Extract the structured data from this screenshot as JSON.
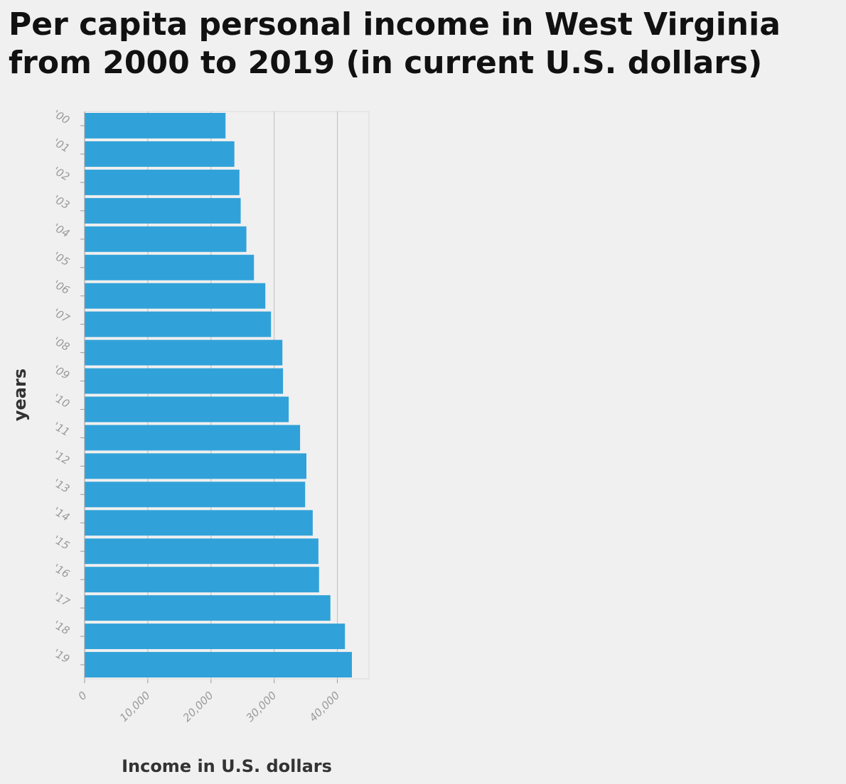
{
  "title_lines": [
    "Per capita personal income in West Virginia",
    "from 2000 to 2019 (in current U.S. dollars)"
  ],
  "chart_data": {
    "type": "bar",
    "orientation": "horizontal",
    "title": "Per capita personal income in West Virginia from 2000 to 2019 (in current U.S. dollars)",
    "xlabel": "Income in U.S. dollars",
    "ylabel": "years",
    "categories": [
      "'00",
      "'01",
      "'02",
      "'03",
      "'04",
      "'05",
      "'06",
      "'07",
      "'08",
      "'09",
      "'10",
      "'11",
      "'12",
      "'13",
      "'14",
      "'15",
      "'16",
      "'17",
      "'18",
      "'19"
    ],
    "values": [
      22300,
      23700,
      24500,
      24700,
      25600,
      26800,
      28600,
      29500,
      31300,
      31400,
      32300,
      34100,
      35100,
      34900,
      36100,
      37000,
      37100,
      38900,
      41200,
      42300
    ],
    "xlim": [
      0,
      45000
    ],
    "xticks": [
      0,
      10000,
      20000,
      30000,
      40000
    ],
    "xtick_labels": [
      "0",
      "10,000",
      "20,000",
      "30,000",
      "40,000"
    ],
    "grid": "vertical",
    "bar_color": "#31a2d9"
  }
}
